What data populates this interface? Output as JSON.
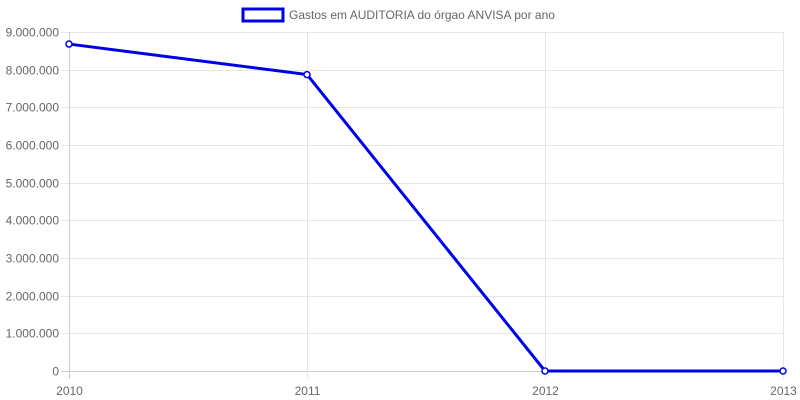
{
  "chart_data": {
    "type": "line",
    "legend": {
      "position": "top-center",
      "label": "Gastos em AUDITORIA do órgao ANVISA por ano"
    },
    "categories": [
      "2010",
      "2011",
      "2012",
      "2013"
    ],
    "series": [
      {
        "name": "Gastos em AUDITORIA do órgao ANVISA por ano",
        "color": "#0000e6",
        "values": [
          8680000,
          7870000,
          0,
          0
        ]
      }
    ],
    "ylim": [
      0,
      9000000
    ],
    "y_ticks": [
      {
        "value": 0,
        "label": "0"
      },
      {
        "value": 1000000,
        "label": "1.000.000"
      },
      {
        "value": 2000000,
        "label": "2.000.000"
      },
      {
        "value": 3000000,
        "label": "3.000.000"
      },
      {
        "value": 4000000,
        "label": "4.000.000"
      },
      {
        "value": 5000000,
        "label": "5.000.000"
      },
      {
        "value": 6000000,
        "label": "6.000.000"
      },
      {
        "value": 7000000,
        "label": "7.000.000"
      },
      {
        "value": 8000000,
        "label": "8.000.000"
      },
      {
        "value": 9000000,
        "label": "9.000.000"
      }
    ],
    "grid": true,
    "colors": {
      "grid": "#e6e6e6",
      "axis": "#cccccc",
      "text": "#666666"
    }
  }
}
